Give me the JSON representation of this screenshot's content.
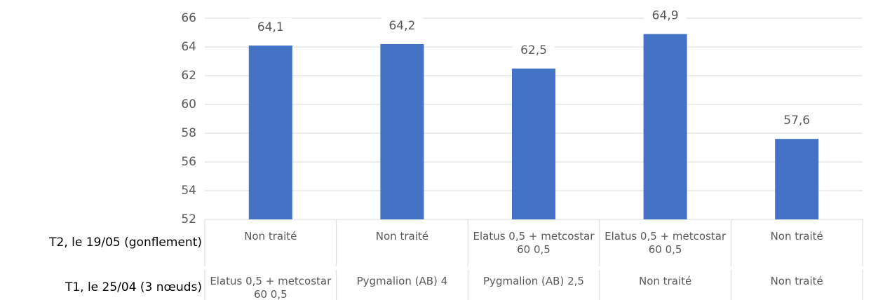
{
  "chart_data": {
    "type": "bar",
    "category_levels": [
      {
        "name": "T2, le 19/05 (gonflement)",
        "labels": [
          "Non traité",
          "Non traité",
          "Elatus 0,5 + metcostar 60 0,5",
          "Elatus 0,5 + metcostar 60 0,5",
          "Non traité"
        ]
      },
      {
        "name": "T1, le 25/04 (3 nœuds)",
        "labels": [
          "Elatus 0,5 + metcostar 60 0,5",
          "Pygmalion (AB) 4",
          "Pygmalion (AB) 2,5",
          "Non traité",
          "Non traité"
        ]
      }
    ],
    "values": [
      64.1,
      64.2,
      62.5,
      64.9,
      57.6
    ],
    "value_labels": [
      "64,1",
      "64,2",
      "62,5",
      "64,9",
      "57,6"
    ],
    "color": "#4472c4",
    "ylim": [
      52,
      66
    ],
    "yticks": [
      52,
      54,
      56,
      58,
      60,
      62,
      64,
      66
    ],
    "grid": true
  }
}
